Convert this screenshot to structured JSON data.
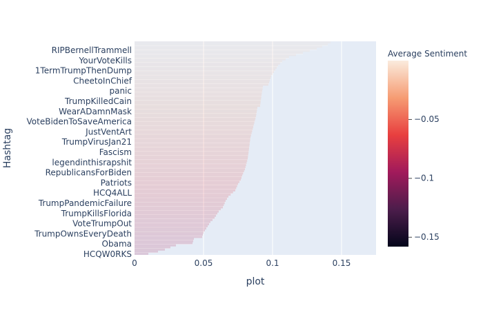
{
  "chart_data": {
    "type": "bar",
    "orientation": "horizontal",
    "xlabel": "plot",
    "ylabel": "Hashtag",
    "xlim": [
      0,
      0.175
    ],
    "x_ticks": [
      0,
      0.05,
      0.1,
      0.15
    ],
    "x_tick_labels": [
      "0",
      "0.05",
      "0.1",
      "0.15"
    ],
    "category_labels": [
      "RIPBernellTrammell",
      "YourVoteKills",
      "1TermTrumpThenDump",
      "CheetoInChief",
      "panic",
      "TrumpKilledCain",
      "WearADamnMask",
      "VoteBidenToSaveAmerica",
      "JustVentArt",
      "TrumpVirusJan21",
      "Fascism",
      "legendinthisrapshit",
      "RepublicansForBiden",
      "Patriots",
      "HCQ4ALL",
      "TrumpPandemicFailure",
      "TrumpKillsFlorida",
      "VoteTrumpOut",
      "TrumpOwnsEveryDeath",
      "Obama",
      "HCQW0RKS"
    ],
    "bar_count": 101,
    "profile": [
      [
        0,
        0.142
      ],
      [
        1,
        0.14
      ],
      [
        3,
        0.132
      ],
      [
        5,
        0.122
      ],
      [
        7,
        0.112
      ],
      [
        9,
        0.107
      ],
      [
        11,
        0.104
      ],
      [
        14,
        0.101
      ],
      [
        16,
        0.099
      ],
      [
        18,
        0.098
      ],
      [
        20,
        0.097
      ],
      [
        21,
        0.093
      ],
      [
        25,
        0.092
      ],
      [
        30,
        0.091
      ],
      [
        31,
        0.089
      ],
      [
        35,
        0.088
      ],
      [
        40,
        0.086
      ],
      [
        45,
        0.084
      ],
      [
        50,
        0.083
      ],
      [
        55,
        0.082
      ],
      [
        60,
        0.08
      ],
      [
        63,
        0.078
      ],
      [
        65,
        0.077
      ],
      [
        67,
        0.075
      ],
      [
        70,
        0.073
      ],
      [
        73,
        0.068
      ],
      [
        75,
        0.066
      ],
      [
        78,
        0.064
      ],
      [
        80,
        0.061
      ],
      [
        83,
        0.058
      ],
      [
        85,
        0.055
      ],
      [
        88,
        0.052
      ],
      [
        90,
        0.05
      ],
      [
        92,
        0.049
      ],
      [
        93,
        0.043
      ],
      [
        95,
        0.042
      ],
      [
        96,
        0.03
      ],
      [
        98,
        0.022
      ],
      [
        99,
        0.017
      ],
      [
        100,
        0.01
      ]
    ],
    "sentiment_top": -0.005,
    "sentiment_bottom": -0.09,
    "bar_opacity": 0.18,
    "colorbar": {
      "title": "Average Sentiment",
      "range": [
        -0.158,
        0.0
      ],
      "ticks": [
        -0.05,
        -0.1,
        -0.15
      ],
      "tick_labels": [
        "−0.05",
        "−0.1",
        "−0.15"
      ],
      "colorscale": [
        "#03051a",
        "#4c1d4b",
        "#a11a5b",
        "#e83f3f",
        "#f69c73",
        "#faebdd"
      ]
    },
    "plot_background": "#e5ecf6",
    "grid": true,
    "legend": "colorbar-right"
  }
}
